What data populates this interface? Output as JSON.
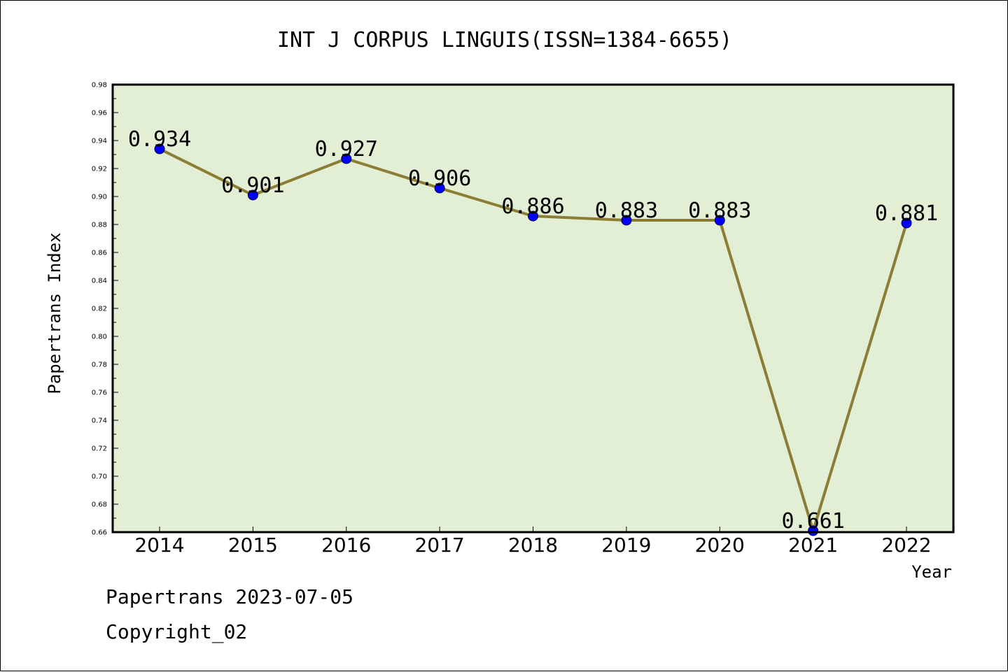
{
  "chart_data": {
    "type": "line",
    "title": "INT J CORPUS LINGUIS(ISSN=1384-6655)",
    "xlabel": "Year",
    "ylabel": "Papertrans Index",
    "categories": [
      "2014",
      "2015",
      "2016",
      "2017",
      "2018",
      "2019",
      "2020",
      "2021",
      "2022"
    ],
    "series": [
      {
        "values": [
          0.934,
          0.901,
          0.927,
          0.906,
          0.886,
          0.883,
          0.883,
          0.661,
          0.881
        ]
      }
    ],
    "data_labels": [
      "0.934",
      "0.901",
      "0.927",
      "0.906",
      "0.886",
      "0.883",
      "0.883",
      "0.661",
      "0.881"
    ],
    "ylim": [
      0.66,
      0.98
    ],
    "yticks": [
      "0.66",
      "0.68",
      "0.70",
      "0.72",
      "0.74",
      "0.76",
      "0.78",
      "0.80",
      "0.82",
      "0.84",
      "0.86",
      "0.88",
      "0.90",
      "0.92",
      "0.94",
      "0.96",
      "0.98"
    ],
    "grid": false,
    "colors": {
      "plot_background": "#e2efd4",
      "line": "#8b7d35",
      "marker": "#0000ff"
    }
  },
  "footer": {
    "line1": "Papertrans 2023-07-05",
    "line2": "Copyright_02"
  }
}
